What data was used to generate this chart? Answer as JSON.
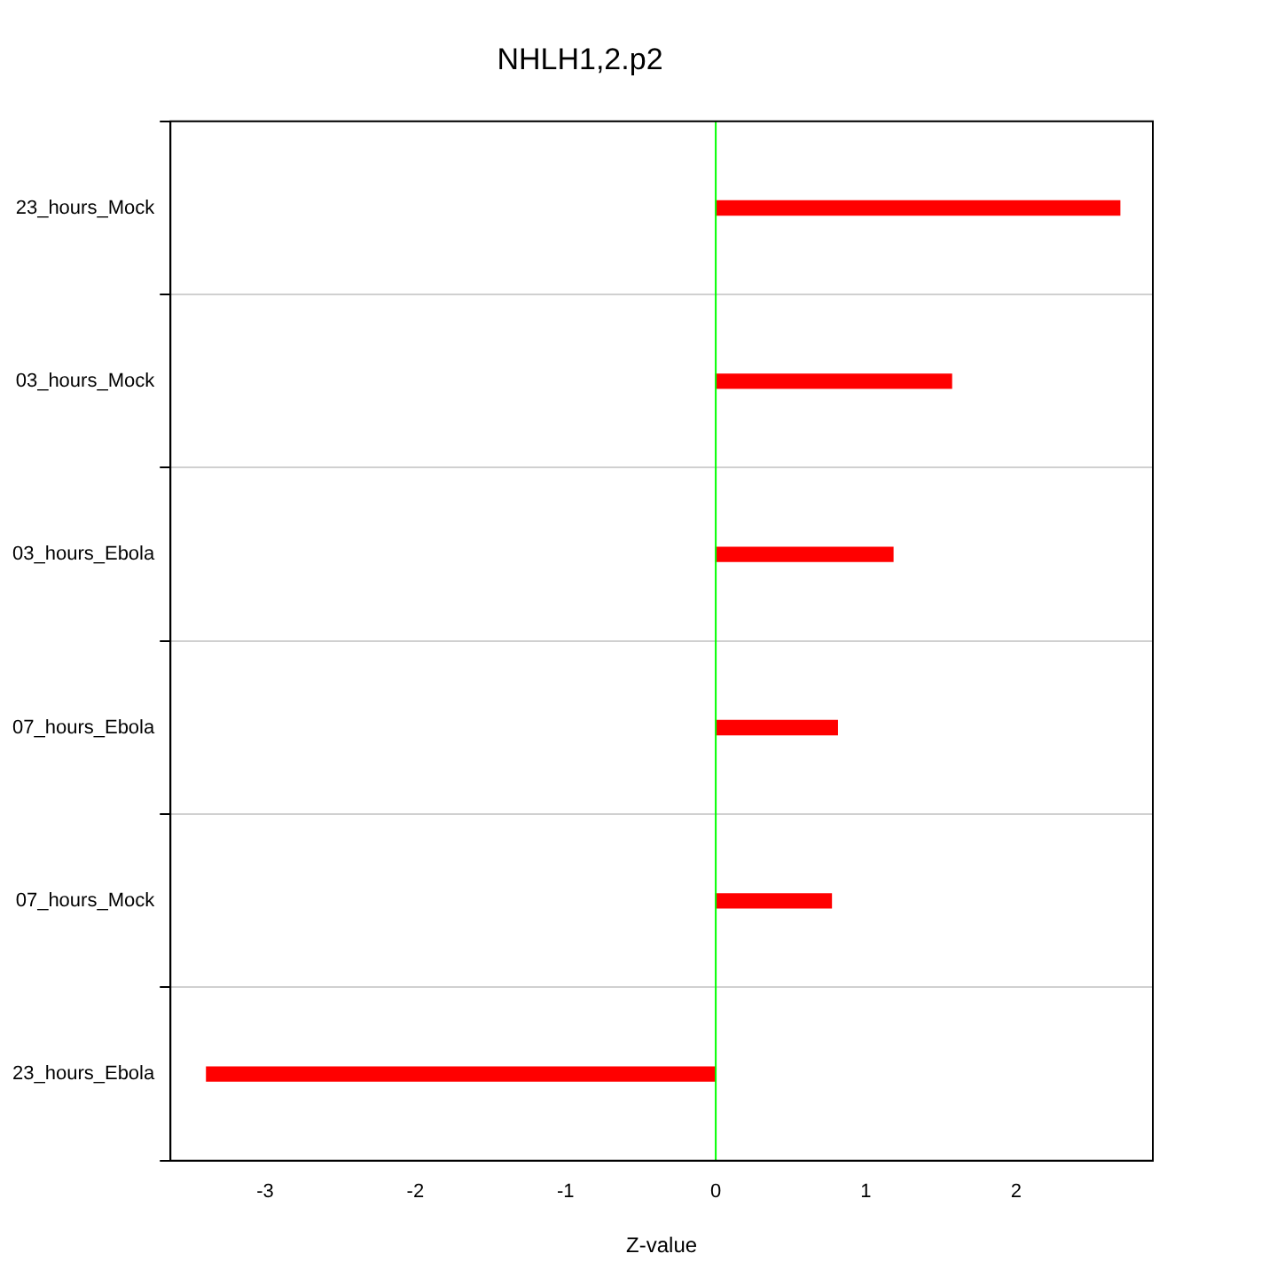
{
  "chart_data": {
    "type": "bar",
    "orientation": "horizontal",
    "title": "NHLH1,2.p2",
    "xlabel": "Z-value",
    "categories": [
      "23_hours_Mock",
      "03_hours_Mock",
      "03_hours_Ebola",
      "07_hours_Ebola",
      "07_hours_Mock",
      "23_hours_Ebola"
    ],
    "values": [
      2.69,
      1.57,
      1.18,
      0.81,
      0.77,
      -3.39
    ],
    "color": "#ff0000",
    "xlim": [
      -3.63,
      2.91
    ],
    "xticks": [
      -3,
      -2,
      -1,
      0,
      1,
      2
    ],
    "grid": "y",
    "ref_lines": [
      {
        "axis": "x",
        "value": 0,
        "color": "#00ff00"
      }
    ]
  }
}
